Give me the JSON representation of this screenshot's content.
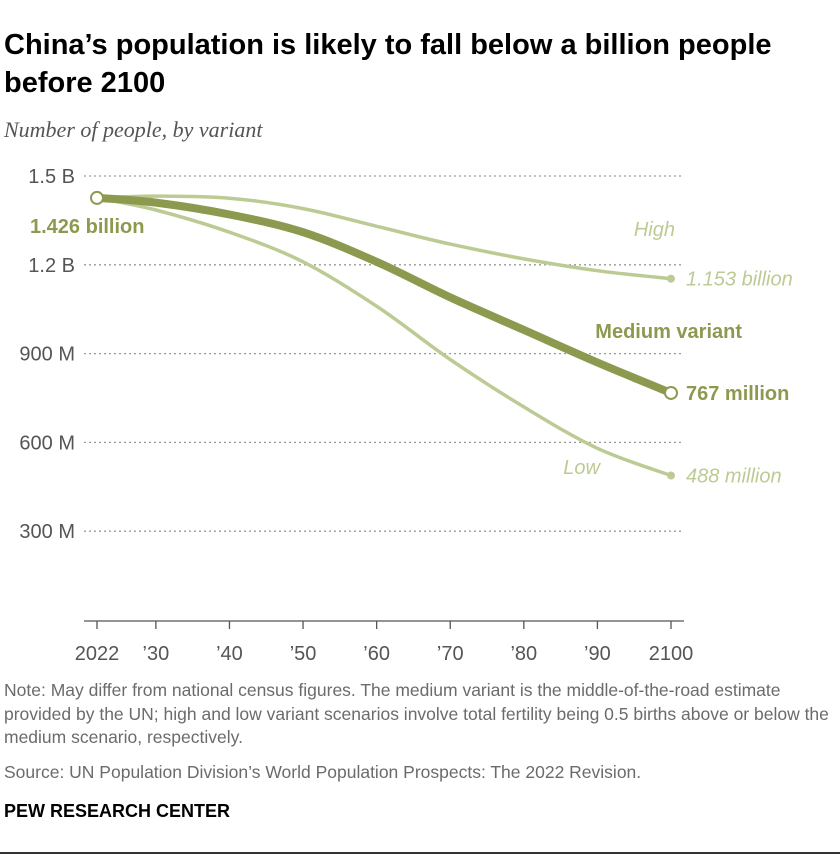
{
  "header": {
    "title": "China’s population is likely to fall below a billion people before 2100",
    "subtitle": "Number of people, by variant"
  },
  "footer": {
    "note": "Note: May differ from national census figures. The medium variant is the middle-of-the-road estimate provided by the UN; high and low variant scenarios involve total fertility being 0.5 births above or below the medium scenario, respectively.",
    "source": "Source: UN Population Division’s World Population Prospects: The 2022 Revision.",
    "brand": "PEW RESEARCH CENTER"
  },
  "chart_data": {
    "type": "line",
    "title": "China’s population is likely to fall below a billion people before 2100",
    "subtitle": "Number of people, by variant",
    "xlabel": "",
    "ylabel": "",
    "xlim": [
      2022,
      2100
    ],
    "ylim": [
      0,
      1500000000
    ],
    "grid": true,
    "x_ticks": [
      {
        "value": 2022,
        "label": "2022"
      },
      {
        "value": 2030,
        "label": "’30"
      },
      {
        "value": 2040,
        "label": "’40"
      },
      {
        "value": 2050,
        "label": "’50"
      },
      {
        "value": 2060,
        "label": "’60"
      },
      {
        "value": 2070,
        "label": "’70"
      },
      {
        "value": 2080,
        "label": "’80"
      },
      {
        "value": 2090,
        "label": "’90"
      },
      {
        "value": 2100,
        "label": "2100"
      }
    ],
    "y_ticks": [
      {
        "value": 300000000,
        "label": "300 M"
      },
      {
        "value": 600000000,
        "label": "600 M"
      },
      {
        "value": 900000000,
        "label": "900 M"
      },
      {
        "value": 1200000000,
        "label": "1.2 B"
      },
      {
        "value": 1500000000,
        "label": "1.5 B"
      }
    ],
    "x": [
      2022,
      2030,
      2040,
      2050,
      2060,
      2070,
      2080,
      2090,
      2100
    ],
    "start_label": "1.426 billion",
    "series": [
      {
        "name": "High",
        "color": "#bccb94",
        "values": [
          1426000000,
          1432000000,
          1425000000,
          1390000000,
          1330000000,
          1270000000,
          1220000000,
          1180000000,
          1153000000
        ],
        "end_label": "1.153 billion"
      },
      {
        "name": "Medium variant",
        "color": "#8c9a50",
        "values": [
          1426000000,
          1410000000,
          1370000000,
          1310000000,
          1210000000,
          1090000000,
          980000000,
          870000000,
          767000000
        ],
        "end_label": "767 million"
      },
      {
        "name": "Low",
        "color": "#bccb94",
        "values": [
          1426000000,
          1385000000,
          1310000000,
          1210000000,
          1060000000,
          880000000,
          720000000,
          580000000,
          488000000
        ],
        "end_label": "488 million"
      }
    ]
  }
}
